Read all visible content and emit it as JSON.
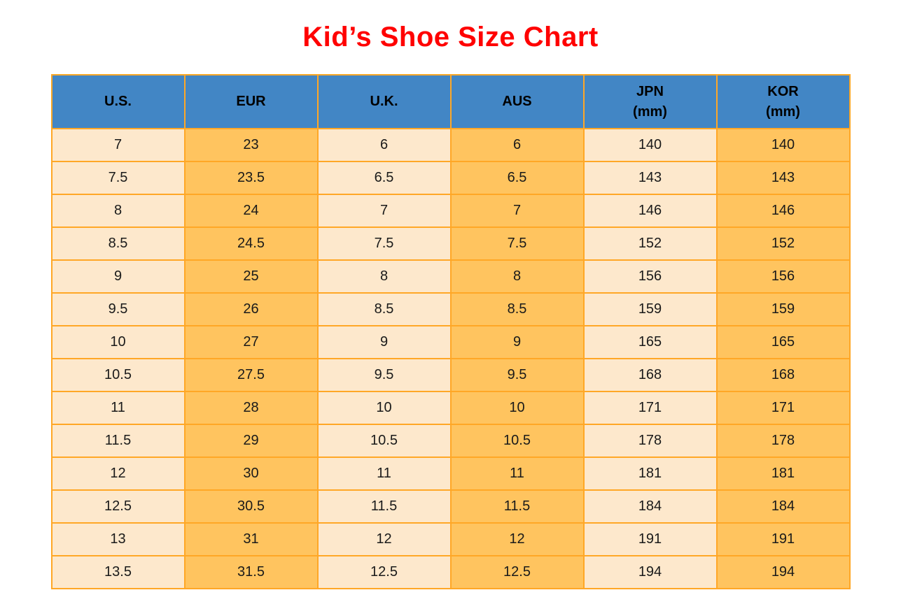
{
  "page": {
    "title": "Kid’s Shoe Size Chart"
  },
  "colors": {
    "title_red": "#FF0000",
    "header_blue": "#4286C5",
    "border_orange": "#FFA726",
    "cell_cream": "#FDE8CC",
    "cell_orange": "#FFC45F",
    "header_text": "#000000",
    "cell_text": "#1A1A1A",
    "page_background": "#FFFFFF"
  },
  "chart_data": {
    "type": "table",
    "title": "Kid’s Shoe Size Chart",
    "columns": [
      [
        "U.S."
      ],
      [
        "EUR"
      ],
      [
        "U.K."
      ],
      [
        "AUS"
      ],
      [
        "JPN",
        "(mm)"
      ],
      [
        "KOR",
        "(mm)"
      ]
    ],
    "rows": [
      [
        "7",
        "23",
        "6",
        "6",
        "140",
        "140"
      ],
      [
        "7.5",
        "23.5",
        "6.5",
        "6.5",
        "143",
        "143"
      ],
      [
        "8",
        "24",
        "7",
        "7",
        "146",
        "146"
      ],
      [
        "8.5",
        "24.5",
        "7.5",
        "7.5",
        "152",
        "152"
      ],
      [
        "9",
        "25",
        "8",
        "8",
        "156",
        "156"
      ],
      [
        "9.5",
        "26",
        "8.5",
        "8.5",
        "159",
        "159"
      ],
      [
        "10",
        "27",
        "9",
        "9",
        "165",
        "165"
      ],
      [
        "10.5",
        "27.5",
        "9.5",
        "9.5",
        "168",
        "168"
      ],
      [
        "11",
        "28",
        "10",
        "10",
        "171",
        "171"
      ],
      [
        "11.5",
        "29",
        "10.5",
        "10.5",
        "178",
        "178"
      ],
      [
        "12",
        "30",
        "11",
        "11",
        "181",
        "181"
      ],
      [
        "12.5",
        "30.5",
        "11.5",
        "11.5",
        "184",
        "184"
      ],
      [
        "13",
        "31",
        "12",
        "12",
        "191",
        "191"
      ],
      [
        "13.5",
        "31.5",
        "12.5",
        "12.5",
        "194",
        "194"
      ]
    ],
    "layout": {
      "column_fill_pattern": [
        "cream",
        "orange",
        "cream",
        "orange",
        "cream",
        "orange"
      ],
      "header_fill": "blue",
      "grid": "on"
    }
  }
}
